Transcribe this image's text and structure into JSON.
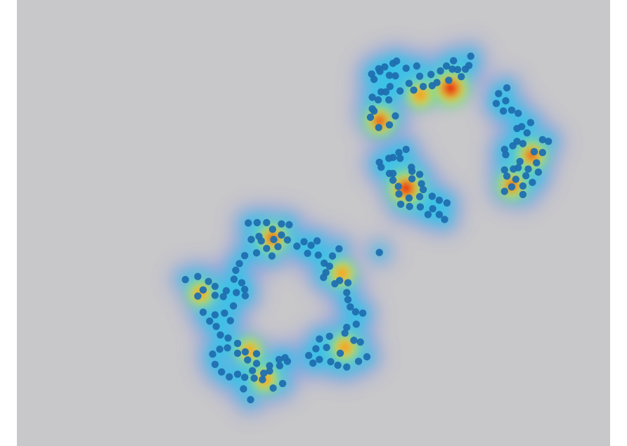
{
  "chart_data": {
    "type": "scatter",
    "title": "",
    "xlabel": "",
    "ylabel": "",
    "grid": false,
    "legend": "none",
    "overlay": "density heatmap",
    "xlim": [
      0,
      100
    ],
    "ylim": [
      0,
      100
    ],
    "colors": {
      "background": "#c8c8ca",
      "point": "#1f6fb0",
      "colormap": [
        "#7b68ee",
        "#2ec4e8",
        "#7ee08a",
        "#f5e23a",
        "#f28a1e",
        "#e30613"
      ]
    },
    "series": [
      {
        "points": [
          [
            61.2,
            84.0
          ],
          [
            61.0,
            84.6
          ],
          [
            62.8,
            83.1
          ],
          [
            59.8,
            83.4
          ],
          [
            60.2,
            82.2
          ],
          [
            62.0,
            85.0
          ],
          [
            63.8,
            83.0
          ],
          [
            65.6,
            84.7
          ],
          [
            64.0,
            86.3
          ],
          [
            63.4,
            85.8
          ],
          [
            67.4,
            85.2
          ],
          [
            67.9,
            82.9
          ],
          [
            69.8,
            83.3
          ],
          [
            71.4,
            84.1
          ],
          [
            72.4,
            85.2
          ],
          [
            73.4,
            84.5
          ],
          [
            74.3,
            84.4
          ],
          [
            75.6,
            84.5
          ],
          [
            73.6,
            86.4
          ],
          [
            76.5,
            87.4
          ],
          [
            76.2,
            85.3
          ],
          [
            74.9,
            82.8
          ],
          [
            72.8,
            82.0
          ],
          [
            70.8,
            81.5
          ],
          [
            70.0,
            80.8
          ],
          [
            68.5,
            80.6
          ],
          [
            66.1,
            81.3
          ],
          [
            66.9,
            79.8
          ],
          [
            64.6,
            79.6
          ],
          [
            62.2,
            79.4
          ],
          [
            62.7,
            77.6
          ],
          [
            60.9,
            77.6
          ],
          [
            59.9,
            78.2
          ],
          [
            59.6,
            73.7
          ],
          [
            61.0,
            71.4
          ],
          [
            62.8,
            72.0
          ],
          [
            60.2,
            75.1
          ],
          [
            63.8,
            74.0
          ],
          [
            59.9,
            75.6
          ],
          [
            61.4,
            79.4
          ],
          [
            62.9,
            80.6
          ],
          [
            81.2,
            79.0
          ],
          [
            82.6,
            80.3
          ],
          [
            82.4,
            77.4
          ],
          [
            80.8,
            76.8
          ],
          [
            82.0,
            75.1
          ],
          [
            83.4,
            75.3
          ],
          [
            84.5,
            74.6
          ],
          [
            86.6,
            72.5
          ],
          [
            85.1,
            71.6
          ],
          [
            84.3,
            71.2
          ],
          [
            86.0,
            70.2
          ],
          [
            88.6,
            68.7
          ],
          [
            89.6,
            68.3
          ],
          [
            88.6,
            65.8
          ],
          [
            87.6,
            63.5
          ],
          [
            86.2,
            62.1
          ],
          [
            84.5,
            62.4
          ],
          [
            83.7,
            62.1
          ],
          [
            82.2,
            61.9
          ],
          [
            82.6,
            60.5
          ],
          [
            84.1,
            59.8
          ],
          [
            83.4,
            58.1
          ],
          [
            82.2,
            57.1
          ],
          [
            85.3,
            58.3
          ],
          [
            85.8,
            60.6
          ],
          [
            87.9,
            61.4
          ],
          [
            86.9,
            59.1
          ],
          [
            85.3,
            56.4
          ],
          [
            82.4,
            65.3
          ],
          [
            82.2,
            66.5
          ],
          [
            83.6,
            67.3
          ],
          [
            84.3,
            68.3
          ],
          [
            85.3,
            67.8
          ],
          [
            87.2,
            66.0
          ],
          [
            84.8,
            63.8
          ],
          [
            64.6,
            64.5
          ],
          [
            65.6,
            66.5
          ],
          [
            66.6,
            61.6
          ],
          [
            66.6,
            59.9
          ],
          [
            66.5,
            62.5
          ],
          [
            67.9,
            60.9
          ],
          [
            68.2,
            58.8
          ],
          [
            68.5,
            57.5
          ],
          [
            70.0,
            56.0
          ],
          [
            71.2,
            55.1
          ],
          [
            72.5,
            54.5
          ],
          [
            70.1,
            53.2
          ],
          [
            71.2,
            51.9
          ],
          [
            72.1,
            50.8
          ],
          [
            69.3,
            51.9
          ],
          [
            68.0,
            53.6
          ],
          [
            66.2,
            53.7
          ],
          [
            67.9,
            55.9
          ],
          [
            66.1,
            55.6
          ],
          [
            64.7,
            54.2
          ],
          [
            64.4,
            56.5
          ],
          [
            64.3,
            58.2
          ],
          [
            63.4,
            59.6
          ],
          [
            63.4,
            61.1
          ],
          [
            62.8,
            61.1
          ],
          [
            61.4,
            62.5
          ],
          [
            62.7,
            64.5
          ],
          [
            64.4,
            65.8
          ],
          [
            63.4,
            64.7
          ],
          [
            61.1,
            63.6
          ],
          [
            39.5,
            46.3
          ],
          [
            40.8,
            47.0
          ],
          [
            43.3,
            46.3
          ],
          [
            44.6,
            47.3
          ],
          [
            45.6,
            46.2
          ],
          [
            44.6,
            49.8
          ],
          [
            45.9,
            49.6
          ],
          [
            43.1,
            48.6
          ],
          [
            42.1,
            50.1
          ],
          [
            40.5,
            50.1
          ],
          [
            39.0,
            50.0
          ],
          [
            41.2,
            46.0
          ],
          [
            44.0,
            44.7
          ],
          [
            42.1,
            44.3
          ],
          [
            43.0,
            42.6
          ],
          [
            40.4,
            43.3
          ],
          [
            38.4,
            42.7
          ],
          [
            37.5,
            40.9
          ],
          [
            36.9,
            39.4
          ],
          [
            36.6,
            37.4
          ],
          [
            37.9,
            36.6
          ],
          [
            38.4,
            35.1
          ],
          [
            38.5,
            33.7
          ],
          [
            37.0,
            34.4
          ],
          [
            35.3,
            34.8
          ],
          [
            33.4,
            35.8
          ],
          [
            32.3,
            36.9
          ],
          [
            30.5,
            38.0
          ],
          [
            28.4,
            37.3
          ],
          [
            30.5,
            33.6
          ],
          [
            31.4,
            35.0
          ],
          [
            33.4,
            33.8
          ],
          [
            34.8,
            33.5
          ],
          [
            36.5,
            31.4
          ],
          [
            35.0,
            29.8
          ],
          [
            33.4,
            29.4
          ],
          [
            31.4,
            30.0
          ],
          [
            32.5,
            28.0
          ],
          [
            33.6,
            26.8
          ],
          [
            36.0,
            28.1
          ],
          [
            48.4,
            45.8
          ],
          [
            49.6,
            45.0
          ],
          [
            50.8,
            42.8
          ],
          [
            51.8,
            41.0
          ],
          [
            52.7,
            40.3
          ],
          [
            52.1,
            38.9
          ],
          [
            51.7,
            37.8
          ],
          [
            53.6,
            36.4
          ],
          [
            54.4,
            37.1
          ],
          [
            55.8,
            36.6
          ],
          [
            55.6,
            34.4
          ],
          [
            55.8,
            32.8
          ],
          [
            56.2,
            31.2
          ],
          [
            57.1,
            30.1
          ],
          [
            58.3,
            29.8
          ],
          [
            57.2,
            27.3
          ],
          [
            55.6,
            26.6
          ],
          [
            55.3,
            25.3
          ],
          [
            56.8,
            23.7
          ],
          [
            57.9,
            23.3
          ],
          [
            59.0,
            20.0
          ],
          [
            57.6,
            19.0
          ],
          [
            55.6,
            17.7
          ],
          [
            54.1,
            18.1
          ],
          [
            52.9,
            18.9
          ],
          [
            51.0,
            19.4
          ],
          [
            49.9,
            18.6
          ],
          [
            49.2,
            20.3
          ],
          [
            50.4,
            21.8
          ],
          [
            52.7,
            24.6
          ],
          [
            51.0,
            24.0
          ],
          [
            52.2,
            22.1
          ],
          [
            54.5,
            20.8
          ],
          [
            53.2,
            42.6
          ],
          [
            54.3,
            44.2
          ],
          [
            50.6,
            46.0
          ],
          [
            47.2,
            44.8
          ],
          [
            49.0,
            43.2
          ],
          [
            35.6,
            24.2
          ],
          [
            34.3,
            24.9
          ],
          [
            35.5,
            22.0
          ],
          [
            37.2,
            23.0
          ],
          [
            37.2,
            20.8
          ],
          [
            38.5,
            21.1
          ],
          [
            40.4,
            20.7
          ],
          [
            38.9,
            19.3
          ],
          [
            40.4,
            18.5
          ],
          [
            42.6,
            18.0
          ],
          [
            44.2,
            19.4
          ],
          [
            45.2,
            19.8
          ],
          [
            44.3,
            18.0
          ],
          [
            42.6,
            16.8
          ],
          [
            41.6,
            16.3
          ],
          [
            41.4,
            14.9
          ],
          [
            40.0,
            15.2
          ],
          [
            39.7,
            16.9
          ],
          [
            38.4,
            15.4
          ],
          [
            37.2,
            16.1
          ],
          [
            35.8,
            15.5
          ],
          [
            34.5,
            16.6
          ],
          [
            33.4,
            18.3
          ],
          [
            33.0,
            20.6
          ],
          [
            34.2,
            21.7
          ],
          [
            38.2,
            12.8
          ],
          [
            39.4,
            10.4
          ],
          [
            43.2,
            13.0
          ],
          [
            44.8,
            14.0
          ],
          [
            45.6,
            19.0
          ],
          [
            61.1,
            43.4
          ]
        ]
      }
    ],
    "density_peaks": [
      {
        "x": 73.1,
        "y": 80.2,
        "level": 1.0
      },
      {
        "x": 65.6,
        "y": 57.8,
        "level": 0.95
      },
      {
        "x": 61.2,
        "y": 72.9,
        "level": 0.6
      },
      {
        "x": 86.8,
        "y": 65.2,
        "level": 0.55
      },
      {
        "x": 83.5,
        "y": 58.5,
        "level": 0.5
      },
      {
        "x": 43.1,
        "y": 46.6,
        "level": 0.55
      },
      {
        "x": 68.0,
        "y": 78.7,
        "level": 0.4
      },
      {
        "x": 31.0,
        "y": 34.2,
        "level": 0.3
      },
      {
        "x": 54.8,
        "y": 38.7,
        "level": 0.35
      },
      {
        "x": 55.3,
        "y": 22.1,
        "level": 0.4
      },
      {
        "x": 39.2,
        "y": 21.4,
        "level": 0.3
      },
      {
        "x": 41.8,
        "y": 15.0,
        "level": 0.35
      }
    ]
  }
}
